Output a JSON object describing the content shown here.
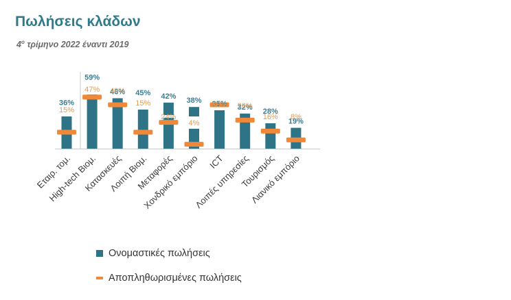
{
  "title": "Πωλήσεις κλάδων",
  "subtitle": {
    "pre": "4",
    "sup": "ο",
    "post": " τρίμηνο 2022 έναντι 2019"
  },
  "colors": {
    "nominal": "#2f7486",
    "deflated": "#f0883a",
    "nominal_label": "#3a7d93",
    "deflated_label": "#e39a4e",
    "axis": "#c8c8c8"
  },
  "chart_data": {
    "type": "bar",
    "title": "Πωλήσεις κλάδων",
    "categories": [
      "Εταιρ. τομ.",
      "High-tech Βιομ.",
      "Κατασκευές",
      "Λοιπή Βιομ.",
      "Μεταφορές",
      "Χονδρικό εμπόριο",
      "ICT",
      "Λοιπές υπηρεσίες",
      "Τουρισμός",
      "Λιανικό εμπόριο"
    ],
    "series": [
      {
        "name": "Ονομαστικές πωλήσεις",
        "values": [
          36,
          59,
          46,
          45,
          42,
          38,
          35,
          32,
          28,
          19
        ]
      },
      {
        "name": "Αποπληθωρισμένες πωλήσεις",
        "values": [
          15,
          47,
          40,
          15,
          24,
          4,
          40,
          26,
          16,
          8
        ]
      }
    ],
    "value_labels": {
      "nominal": [
        "36%",
        "59%",
        "46%",
        "45%",
        "42%",
        "38%",
        "35%",
        "32%",
        "28%",
        "19%"
      ],
      "deflated": [
        "15%",
        "47%",
        "40%",
        "15%",
        "24%",
        "4%",
        "40%",
        "26%",
        "16%",
        "8%"
      ]
    },
    "ylim": [
      0,
      65
    ],
    "grid": false,
    "legend": "bottom"
  },
  "legend": {
    "nominal": "Ονομαστικές πωλήσεις",
    "deflated": "Αποπληθωρισμένες πωλήσεις"
  }
}
